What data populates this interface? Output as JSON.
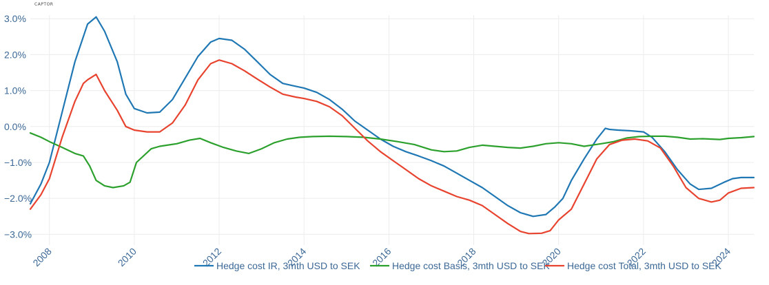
{
  "brand": {
    "name": "CAPTOR"
  },
  "chart_data": {
    "type": "line",
    "title": "",
    "xlabel": "",
    "ylabel": "",
    "xlim": [
      2007.55,
      2024.6
    ],
    "ylim": [
      -3.3,
      3.1
    ],
    "grid": true,
    "legend_position": "bottom-right",
    "y_ticks": [
      -3,
      -2,
      -1,
      0,
      1,
      2,
      3
    ],
    "y_tick_labels": [
      "−3.0%",
      "−2.0%",
      "−1.0%",
      "0.0%",
      "1.0%",
      "2.0%",
      "3.0%"
    ],
    "x_ticks": [
      2008,
      2010,
      2012,
      2014,
      2016,
      2018,
      2020,
      2022,
      2024
    ],
    "x_tick_labels": [
      "2008",
      "2010",
      "2012",
      "2014",
      "2016",
      "2018",
      "2020",
      "2022",
      "2024"
    ],
    "series": [
      {
        "name": "Hedge cost IR, 3mth USD to SEK",
        "color": "#1f77b4",
        "x": [
          2007.55,
          2007.8,
          2008.0,
          2008.3,
          2008.6,
          2008.9,
          2009.1,
          2009.3,
          2009.6,
          2009.8,
          2010.0,
          2010.3,
          2010.6,
          2010.9,
          2011.2,
          2011.5,
          2011.8,
          2012.0,
          2012.3,
          2012.6,
          2012.9,
          2013.2,
          2013.5,
          2013.8,
          2014.0,
          2014.3,
          2014.6,
          2014.9,
          2015.2,
          2015.5,
          2015.8,
          2016.1,
          2016.4,
          2016.7,
          2017.0,
          2017.3,
          2017.6,
          2017.9,
          2018.2,
          2018.5,
          2018.8,
          2019.1,
          2019.4,
          2019.7,
          2019.9,
          2020.1,
          2020.3,
          2020.6,
          2020.9,
          2021.1,
          2021.2,
          2021.4,
          2021.7,
          2022.0,
          2022.2,
          2022.5,
          2022.8,
          2023.1,
          2023.3,
          2023.6,
          2023.9,
          2024.1,
          2024.3,
          2024.6
        ],
        "values": [
          -2.15,
          -1.6,
          -1.0,
          0.4,
          1.8,
          2.85,
          3.05,
          2.65,
          1.8,
          0.9,
          0.5,
          0.38,
          0.4,
          0.75,
          1.35,
          1.95,
          2.35,
          2.45,
          2.4,
          2.15,
          1.8,
          1.45,
          1.2,
          1.12,
          1.07,
          0.95,
          0.75,
          0.48,
          0.15,
          -0.1,
          -0.35,
          -0.55,
          -0.7,
          -0.82,
          -0.95,
          -1.1,
          -1.3,
          -1.5,
          -1.7,
          -1.95,
          -2.2,
          -2.4,
          -2.5,
          -2.45,
          -2.25,
          -2.0,
          -1.5,
          -0.9,
          -0.35,
          -0.05,
          -0.08,
          -0.1,
          -0.12,
          -0.15,
          -0.3,
          -0.7,
          -1.2,
          -1.6,
          -1.75,
          -1.72,
          -1.55,
          -1.45,
          -1.42,
          -1.42
        ]
      },
      {
        "name": "Hedge cost Basis, 3mth USD to SEK",
        "color": "#2ca02c",
        "x": [
          2007.55,
          2007.8,
          2008.0,
          2008.3,
          2008.6,
          2008.8,
          2008.95,
          2009.1,
          2009.3,
          2009.5,
          2009.75,
          2009.9,
          2010.05,
          2010.4,
          2010.6,
          2011.0,
          2011.3,
          2011.55,
          2011.8,
          2012.1,
          2012.4,
          2012.7,
          2013.0,
          2013.3,
          2013.6,
          2013.9,
          2014.2,
          2014.6,
          2015.0,
          2015.4,
          2015.8,
          2016.2,
          2016.6,
          2017.0,
          2017.3,
          2017.6,
          2017.9,
          2018.2,
          2018.5,
          2018.8,
          2019.1,
          2019.4,
          2019.7,
          2020.0,
          2020.3,
          2020.6,
          2021.0,
          2021.3,
          2021.6,
          2021.9,
          2022.2,
          2022.5,
          2022.8,
          2023.1,
          2023.4,
          2023.8,
          2024.0,
          2024.3,
          2024.6
        ],
        "values": [
          -0.18,
          -0.3,
          -0.42,
          -0.58,
          -0.75,
          -0.82,
          -1.1,
          -1.5,
          -1.65,
          -1.7,
          -1.65,
          -1.55,
          -1.0,
          -0.62,
          -0.55,
          -0.48,
          -0.38,
          -0.33,
          -0.45,
          -0.58,
          -0.68,
          -0.75,
          -0.62,
          -0.45,
          -0.35,
          -0.3,
          -0.28,
          -0.27,
          -0.28,
          -0.3,
          -0.35,
          -0.42,
          -0.5,
          -0.65,
          -0.7,
          -0.68,
          -0.58,
          -0.52,
          -0.55,
          -0.58,
          -0.6,
          -0.55,
          -0.48,
          -0.45,
          -0.48,
          -0.55,
          -0.48,
          -0.42,
          -0.32,
          -0.28,
          -0.27,
          -0.27,
          -0.3,
          -0.35,
          -0.34,
          -0.36,
          -0.33,
          -0.31,
          -0.28
        ]
      },
      {
        "name": "Hedge cost Total, 3mth USD to SEK",
        "color": "#e8432e",
        "x": [
          2007.55,
          2007.8,
          2008.0,
          2008.3,
          2008.6,
          2008.8,
          2008.9,
          2009.1,
          2009.3,
          2009.6,
          2009.8,
          2010.0,
          2010.3,
          2010.6,
          2010.9,
          2011.2,
          2011.5,
          2011.8,
          2012.0,
          2012.3,
          2012.6,
          2012.9,
          2013.2,
          2013.5,
          2013.8,
          2014.0,
          2014.3,
          2014.6,
          2014.9,
          2015.2,
          2015.5,
          2015.8,
          2016.1,
          2016.4,
          2016.7,
          2017.0,
          2017.3,
          2017.6,
          2017.9,
          2018.2,
          2018.5,
          2018.8,
          2019.1,
          2019.3,
          2019.6,
          2019.8,
          2020.0,
          2020.3,
          2020.6,
          2020.9,
          2021.2,
          2021.5,
          2021.8,
          2022.1,
          2022.4,
          2022.7,
          2023.0,
          2023.3,
          2023.6,
          2023.8,
          2024.0,
          2024.3,
          2024.6
        ],
        "values": [
          -2.3,
          -1.9,
          -1.45,
          -0.3,
          0.7,
          1.2,
          1.3,
          1.45,
          1.0,
          0.45,
          0.0,
          -0.1,
          -0.15,
          -0.15,
          0.1,
          0.6,
          1.3,
          1.75,
          1.85,
          1.75,
          1.55,
          1.32,
          1.1,
          0.9,
          0.82,
          0.78,
          0.7,
          0.55,
          0.3,
          -0.05,
          -0.4,
          -0.7,
          -0.95,
          -1.2,
          -1.45,
          -1.65,
          -1.8,
          -1.95,
          -2.05,
          -2.2,
          -2.45,
          -2.7,
          -2.92,
          -2.98,
          -2.97,
          -2.9,
          -2.6,
          -2.3,
          -1.6,
          -0.9,
          -0.5,
          -0.38,
          -0.35,
          -0.4,
          -0.6,
          -1.1,
          -1.7,
          -2.0,
          -2.1,
          -2.05,
          -1.85,
          -1.72,
          -1.7
        ]
      }
    ]
  }
}
